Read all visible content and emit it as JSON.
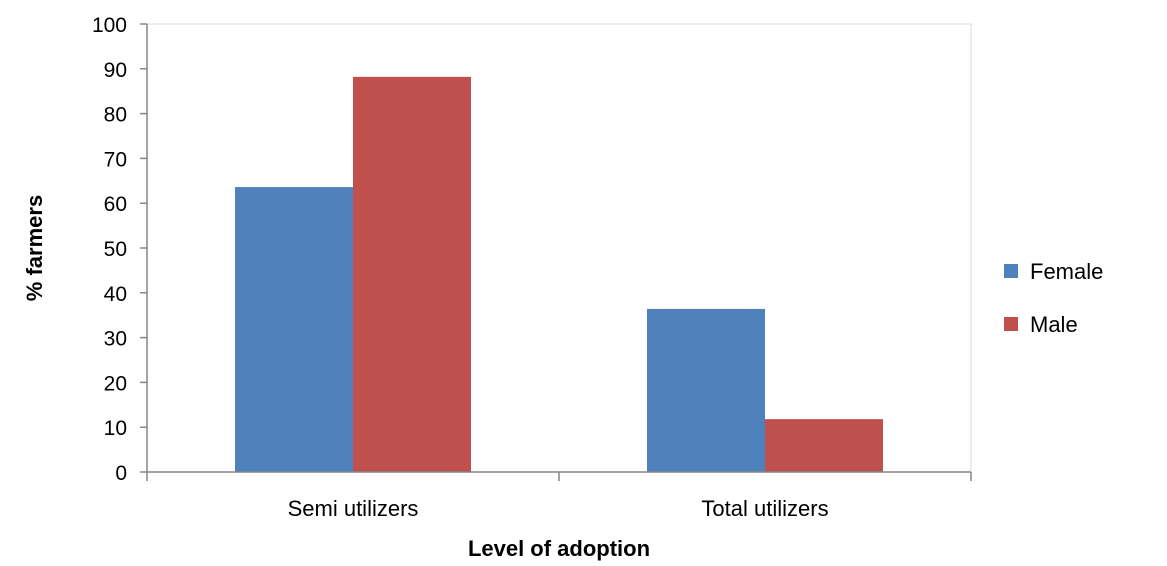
{
  "chart_data": {
    "type": "bar",
    "title": "",
    "xlabel": "Level of adoption",
    "ylabel": "% farmers",
    "categories": [
      "Semi utilizers",
      "Total utilizers"
    ],
    "series": [
      {
        "name": "Female",
        "color": "#4f81bd",
        "values": [
          63.6,
          36.4
        ]
      },
      {
        "name": "Male",
        "color": "#c0504d",
        "values": [
          88.2,
          11.8
        ]
      }
    ],
    "ylim": [
      0,
      100
    ],
    "yticks": [
      0,
      10,
      20,
      30,
      40,
      50,
      60,
      70,
      80,
      90,
      100
    ],
    "grid": false,
    "legend_position": "right"
  }
}
